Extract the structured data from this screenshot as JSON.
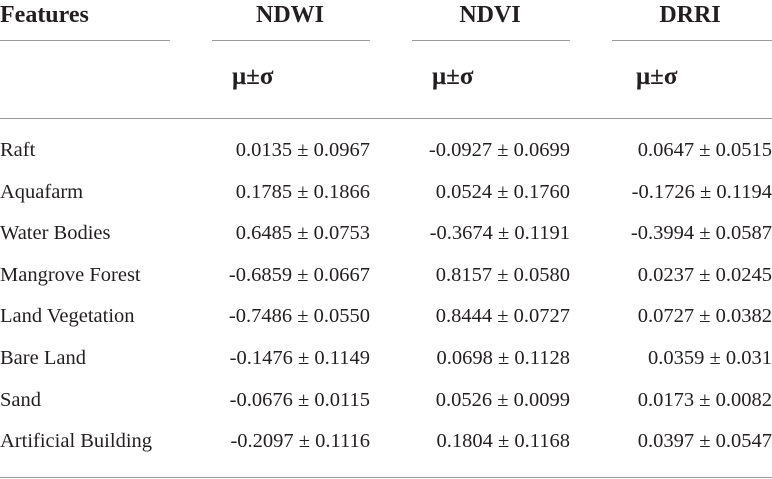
{
  "table": {
    "header": [
      "Features",
      "NDWI",
      "NDVI",
      "DRRI"
    ],
    "subheader": [
      "μ±σ",
      "μ±σ",
      "μ±σ"
    ],
    "rows": [
      [
        "Raft",
        "0.0135 ± 0.0967",
        "-0.0927 ± 0.0699",
        "0.0647 ± 0.0515"
      ],
      [
        "Aquafarm",
        "0.1785 ± 0.1866",
        "0.0524 ± 0.1760",
        "-0.1726 ± 0.1194"
      ],
      [
        "Water Bodies",
        "0.6485 ± 0.0753",
        "-0.3674 ± 0.1191",
        "-0.3994 ± 0.0587"
      ],
      [
        "Mangrove Forest",
        "-0.6859 ± 0.0667",
        "0.8157 ± 0.0580",
        "0.0237 ± 0.0245"
      ],
      [
        "Land Vegetation",
        "-0.7486 ± 0.0550",
        "0.8444 ± 0.0727",
        "0.0727 ± 0.0382"
      ],
      [
        "Bare Land",
        "-0.1476 ± 0.1149",
        "0.0698 ± 0.1128",
        "0.0359 ± 0.031"
      ],
      [
        "Sand",
        "-0.0676 ± 0.0115",
        "0.0526 ± 0.0099",
        "0.0173 ± 0.0082"
      ],
      [
        "Artificial Building",
        "-0.2097 ± 0.1116",
        "0.1804 ± 0.1168",
        "0.0397 ± 0.0547"
      ]
    ]
  }
}
